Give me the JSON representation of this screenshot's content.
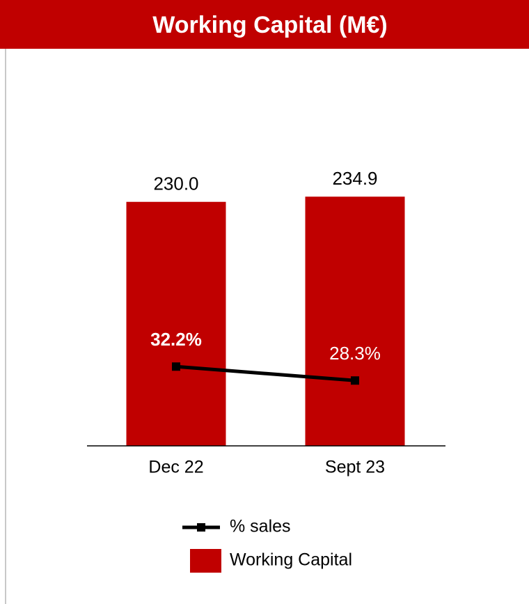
{
  "chart_data": {
    "type": "bar",
    "title": "Working Capital (M€)",
    "categories": [
      "Dec 22",
      "Sept 23"
    ],
    "series": [
      {
        "name": "% sales",
        "type": "line",
        "axis": "y2",
        "color": "#000000",
        "values": [
          32.2,
          28.3
        ],
        "value_labels": [
          "32.2%",
          "28.3%"
        ]
      },
      {
        "name": "Working Capital",
        "type": "bar",
        "color": "#c00000",
        "values": [
          230.0,
          234.9
        ],
        "value_labels": [
          "230.0",
          "234.9"
        ]
      }
    ],
    "ylim": [
      0,
      350
    ],
    "y2lim": [
      10,
      114
    ],
    "grid": false
  }
}
